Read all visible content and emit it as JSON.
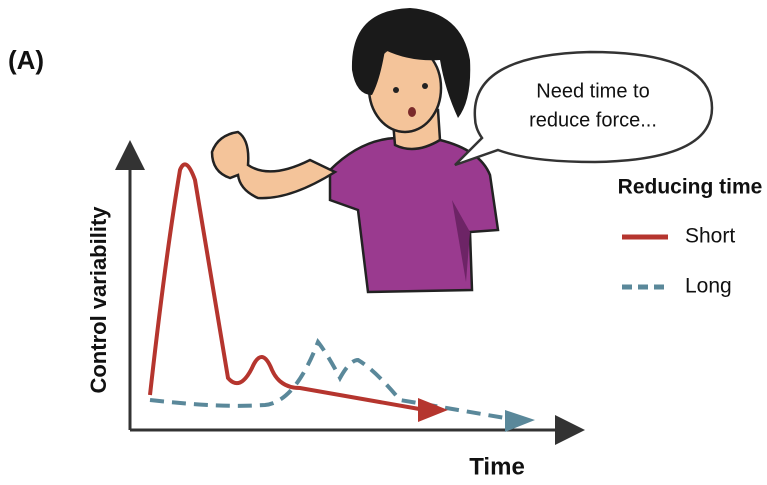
{
  "panel_label": "(A)",
  "speech_bubble": {
    "lines": [
      "Need time to",
      "reduce force..."
    ]
  },
  "legend": {
    "title": "Reducing time",
    "items": [
      {
        "label": "Short"
      },
      {
        "label": "Long"
      }
    ]
  },
  "axes": {
    "y_label": "Control variability",
    "x_label": "Time"
  }
}
